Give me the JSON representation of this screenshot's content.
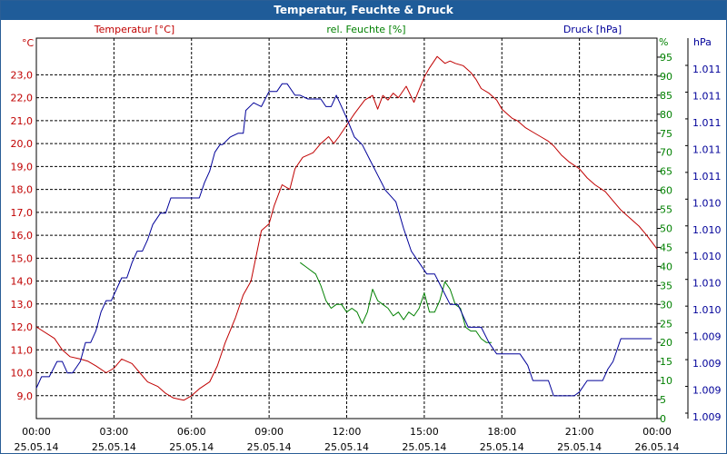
{
  "window": {
    "title": "Temperatur, Feuchte & Druck"
  },
  "colors": {
    "temperature": "#c00000",
    "humidity": "#008000",
    "pressure": "#000099",
    "grid": "#000000",
    "title_bg": "#1f5c99"
  },
  "chart_data": {
    "type": "line",
    "title": "Temperatur, Feuchte & Druck",
    "x_tick_labels": [
      {
        "time": "00:00",
        "date": "25.05.14"
      },
      {
        "time": "03:00",
        "date": "25.05.14"
      },
      {
        "time": "06:00",
        "date": "25.05.14"
      },
      {
        "time": "09:00",
        "date": "25.05.14"
      },
      {
        "time": "12:00",
        "date": "25.05.14"
      },
      {
        "time": "15:00",
        "date": "25.05.14"
      },
      {
        "time": "18:00",
        "date": "25.05.14"
      },
      {
        "time": "21:00",
        "date": "25.05.14"
      },
      {
        "time": "00:00",
        "date": "26.05.14"
      }
    ],
    "xlim_hours": [
      0,
      24
    ],
    "axes": {
      "left": {
        "unit": "°C",
        "min": 8.0,
        "max": 24.6,
        "ticks": [
          "9,0",
          "10,0",
          "11,0",
          "12,0",
          "13,0",
          "14,0",
          "15,0",
          "16,0",
          "17,0",
          "18,0",
          "19,0",
          "20,0",
          "21,0",
          "22,0",
          "23,0"
        ]
      },
      "right1": {
        "unit": "%",
        "min": 0,
        "max": 100,
        "ticks": [
          "0",
          "5",
          "10",
          "15",
          "20",
          "25",
          "30",
          "35",
          "40",
          "45",
          "50",
          "55",
          "60",
          "65",
          "70",
          "75",
          "80",
          "85",
          "90",
          "95"
        ]
      },
      "right2": {
        "unit": "hPa",
        "ticks": [
          "1.009",
          "1.009",
          "1.009",
          "1.009",
          "1.010",
          "1.010",
          "1.010",
          "1.010",
          "1.010",
          "1.011",
          "1.011",
          "1.011",
          "1.011",
          "1.011"
        ]
      }
    },
    "series": [
      {
        "name": "Temperatur [°C]",
        "axis": "left",
        "x": [
          0,
          0.7,
          1,
          1.3,
          1.7,
          2,
          2.3,
          2.7,
          3,
          3.3,
          3.7,
          4,
          4.3,
          4.7,
          5,
          5.3,
          5.7,
          6,
          6.3,
          6.7,
          7,
          7.3,
          7.7,
          8,
          8.3,
          8.7,
          9,
          9.2,
          9.5,
          9.8,
          10,
          10.3,
          10.7,
          11,
          11.3,
          11.5,
          11.7,
          12,
          12.3,
          12.5,
          12.7,
          13,
          13.2,
          13.4,
          13.6,
          13.8,
          14,
          14.3,
          14.6,
          15,
          15.2,
          15.5,
          15.8,
          16,
          16.2,
          16.5,
          16.8,
          17,
          17.2,
          17.5,
          17.8,
          18,
          18.2,
          18.4,
          18.6,
          18.9,
          19.2,
          19.5,
          19.8,
          20,
          20.3,
          20.6,
          21,
          21.3,
          21.6,
          22,
          22.3,
          22.6,
          23,
          23.3,
          23.6,
          24
        ],
        "y": [
          12.0,
          11.5,
          11.0,
          10.7,
          10.6,
          10.5,
          10.3,
          10.0,
          10.2,
          10.6,
          10.4,
          10.0,
          9.6,
          9.4,
          9.1,
          8.9,
          8.8,
          9.0,
          9.3,
          9.6,
          10.3,
          11.3,
          12.4,
          13.4,
          14.0,
          16.2,
          16.5,
          17.3,
          18.2,
          18.0,
          18.9,
          19.4,
          19.6,
          20.0,
          20.3,
          20.0,
          20.3,
          20.8,
          21.3,
          21.6,
          21.9,
          22.1,
          21.5,
          22.1,
          21.9,
          22.2,
          22.0,
          22.5,
          21.8,
          22.9,
          23.3,
          23.8,
          23.5,
          23.6,
          23.5,
          23.4,
          23.1,
          22.8,
          22.4,
          22.2,
          21.9,
          21.5,
          21.3,
          21.1,
          21.0,
          20.7,
          20.5,
          20.3,
          20.1,
          19.9,
          19.5,
          19.2,
          18.9,
          18.5,
          18.2,
          17.9,
          17.5,
          17.1,
          16.7,
          16.4,
          16.0,
          15.4
        ]
      },
      {
        "name": "rel. Feuchte [%]",
        "axis": "right1",
        "x": [
          10.2,
          10.4,
          10.6,
          10.8,
          11,
          11.2,
          11.4,
          11.6,
          11.8,
          12,
          12.2,
          12.4,
          12.6,
          12.8,
          13,
          13.2,
          13.4,
          13.6,
          13.8,
          14,
          14.2,
          14.4,
          14.6,
          14.8,
          15,
          15.2,
          15.4,
          15.6,
          15.8,
          16,
          16.2,
          16.4,
          16.6,
          16.8,
          17,
          17.2,
          17.4,
          17.6
        ],
        "y": [
          41,
          40,
          39,
          38,
          35,
          31,
          29,
          30,
          30,
          28,
          29,
          28,
          25,
          28,
          34,
          31,
          30,
          29,
          27,
          28,
          26,
          28,
          27,
          29,
          33,
          28,
          28,
          31,
          36,
          34,
          30,
          29,
          24,
          23,
          23,
          21,
          20,
          20
        ]
      },
      {
        "name": "Druck [hPa]",
        "axis": "right1",
        "x": [
          0,
          0.2,
          0.5,
          0.8,
          1,
          1.2,
          1.4,
          1.5,
          1.7,
          1.9,
          2.1,
          2.3,
          2.5,
          2.7,
          2.9,
          3.1,
          3.3,
          3.5,
          3.7,
          3.9,
          4.1,
          4.3,
          4.5,
          4.8,
          5,
          5.2,
          5.4,
          5.7,
          5.9,
          6.1,
          6.3,
          6.5,
          6.7,
          6.9,
          7.1,
          7.2,
          7.5,
          7.8,
          8,
          8.1,
          8.4,
          8.7,
          9,
          9.3,
          9.5,
          9.7,
          10,
          10.2,
          10.5,
          10.8,
          11,
          11.2,
          11.4,
          11.6,
          11.8,
          12,
          12.3,
          12.6,
          12.9,
          13.2,
          13.5,
          13.9,
          14.2,
          14.5,
          14.8,
          15.1,
          15.4,
          15.7,
          16,
          16.3,
          16.5,
          16.7,
          17,
          17.2,
          17.5,
          17.8,
          18.1,
          18.4,
          18.7,
          19,
          19.2,
          19.4,
          19.6,
          19.8,
          20,
          20.2,
          20.4,
          20.6,
          20.8,
          21,
          21.3,
          21.6,
          21.9,
          22.1,
          22.3,
          22.6,
          22.9,
          23.2,
          23.5,
          23.8
        ],
        "y": [
          8,
          11,
          11,
          15,
          15,
          12,
          12,
          13,
          15,
          20,
          20,
          23,
          28,
          31,
          31,
          34,
          37,
          37,
          41,
          44,
          44,
          47,
          51,
          54,
          54,
          58,
          58,
          58,
          58,
          58,
          58,
          62,
          65,
          70,
          72,
          72,
          74,
          75,
          75,
          81,
          83,
          82,
          86,
          86,
          88,
          88,
          85,
          85,
          84,
          84,
          84,
          82,
          82,
          85,
          82,
          79,
          74,
          72,
          68,
          64,
          60,
          57,
          50,
          44,
          41,
          38,
          38,
          34,
          30,
          30,
          27,
          24,
          24,
          24,
          20,
          17,
          17,
          17,
          17,
          14,
          10,
          10,
          10,
          10,
          6,
          6,
          6,
          6,
          6,
          7,
          10,
          10,
          10,
          13,
          15,
          21,
          21,
          21,
          21,
          21
        ]
      }
    ],
    "headers": {
      "left": "Temperatur [°C]",
      "middle": "rel. Feuchte [%]",
      "right": "Druck [hPa]"
    }
  }
}
